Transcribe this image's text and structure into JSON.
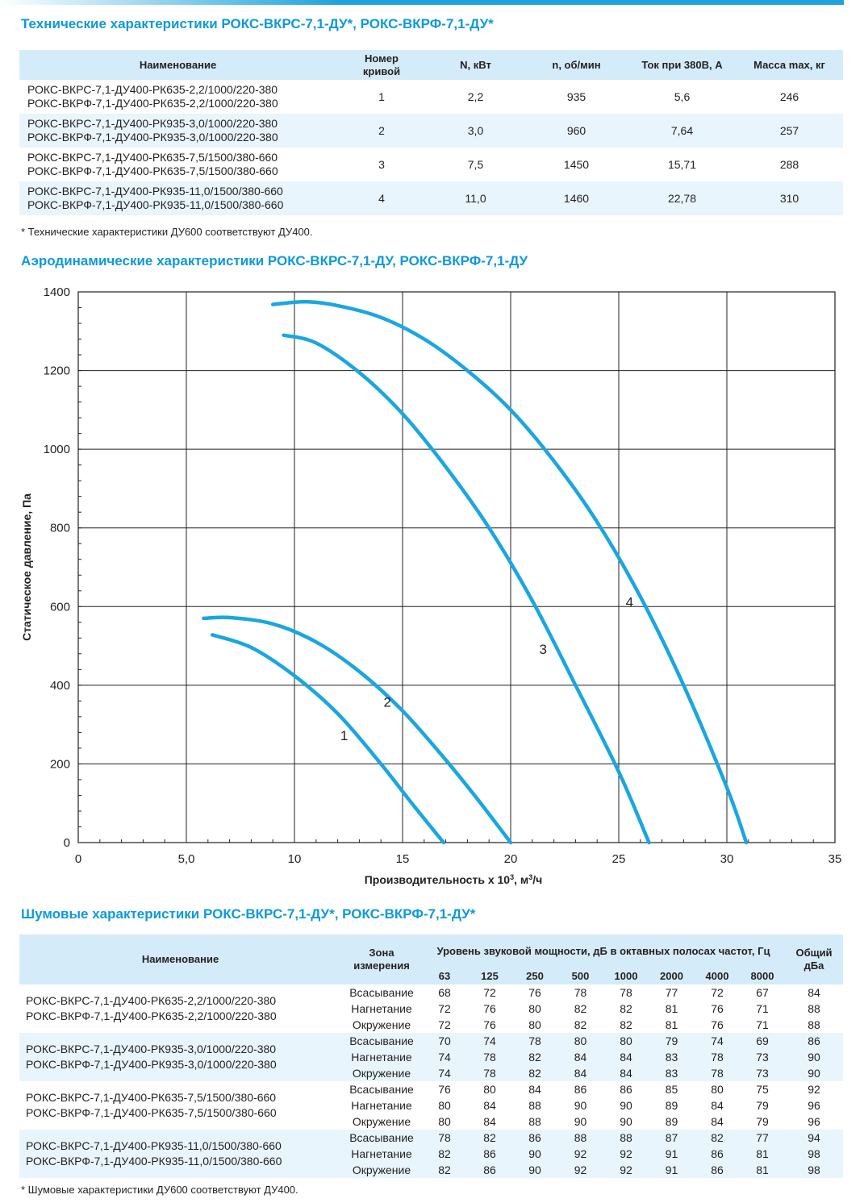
{
  "tech": {
    "title": "Технические характеристики РОКС-ВКРС-7,1-ДУ*, РОКС-ВКРФ-7,1-ДУ*",
    "headers": [
      "Наименование",
      "Номер кривой",
      "N, кВт",
      "n, об/мин",
      "Ток при 380В, А",
      "Масса max, кг"
    ],
    "rows": [
      {
        "name1": "РОКС-ВКРС-7,1-ДУ400-РК635-2,2/1000/220-380",
        "name2": "РОКС-ВКРФ-7,1-ДУ400-РК635-2,2/1000/220-380",
        "curve": "1",
        "power": "2,2",
        "rpm": "935",
        "current": "5,6",
        "mass": "246"
      },
      {
        "name1": "РОКС-ВКРС-7,1-ДУ400-РК935-3,0/1000/220-380",
        "name2": "РОКС-ВКРФ-7,1-ДУ400-РК935-3,0/1000/220-380",
        "curve": "2",
        "power": "3,0",
        "rpm": "960",
        "current": "7,64",
        "mass": "257"
      },
      {
        "name1": "РОКС-ВКРС-7,1-ДУ400-РК635-7,5/1500/380-660",
        "name2": "РОКС-ВКРФ-7,1-ДУ400-РК635-7,5/1500/380-660",
        "curve": "3",
        "power": "7,5",
        "rpm": "1450",
        "current": "15,71",
        "mass": "288"
      },
      {
        "name1": "РОКС-ВКРС-7,1-ДУ400-РК935-11,0/1500/380-660",
        "name2": "РОКС-ВКРФ-7,1-ДУ400-РК935-11,0/1500/380-660",
        "curve": "4",
        "power": "11,0",
        "rpm": "1460",
        "current": "22,78",
        "mass": "310"
      }
    ],
    "note": "* Технические характеристики ДУ600 соответствуют ДУ400."
  },
  "aero": {
    "title": "Аэродинамические характеристики РОКС-ВКРС-7,1-ДУ, РОКС-ВКРФ-7,1-ДУ"
  },
  "chart_data": {
    "type": "line",
    "xlabel_main": "Производительность х 10",
    "xlabel_sup": "3",
    "xlabel_unit": ", м",
    "xlabel_unit_sup": "3",
    "xlabel_tail": "/ч",
    "ylabel": "Статическое давление, Па",
    "xlim": [
      0,
      35
    ],
    "ylim": [
      0,
      1400
    ],
    "x_ticks": [
      0,
      5,
      10,
      15,
      20,
      25,
      30,
      35
    ],
    "x_tick_labels": [
      "0",
      "5,0",
      "10",
      "15",
      "20",
      "25",
      "30",
      "35"
    ],
    "y_ticks": [
      0,
      200,
      400,
      600,
      800,
      1000,
      1200,
      1400
    ],
    "y_tick_labels": [
      "0",
      "200",
      "400",
      "600",
      "800",
      "1000",
      "1200",
      "1400"
    ],
    "grid": true,
    "line_color": "#1aa6e0",
    "series": [
      {
        "name": "1",
        "label_at": [
          12.3,
          260
        ],
        "points": [
          [
            6.2,
            528
          ],
          [
            8,
            496
          ],
          [
            10,
            424
          ],
          [
            12,
            328
          ],
          [
            14,
            200
          ],
          [
            15.5,
            95
          ],
          [
            16.9,
            0
          ]
        ]
      },
      {
        "name": "2",
        "label_at": [
          14.3,
          345
        ],
        "points": [
          [
            5.8,
            570
          ],
          [
            7,
            572
          ],
          [
            9,
            556
          ],
          [
            11,
            510
          ],
          [
            13,
            435
          ],
          [
            15,
            335
          ],
          [
            17,
            210
          ],
          [
            18.5,
            108
          ],
          [
            20,
            0
          ]
        ]
      },
      {
        "name": "3",
        "label_at": [
          21.5,
          480
        ],
        "points": [
          [
            9.5,
            1290
          ],
          [
            11,
            1270
          ],
          [
            13,
            1195
          ],
          [
            15,
            1090
          ],
          [
            17,
            955
          ],
          [
            19,
            800
          ],
          [
            21,
            615
          ],
          [
            23,
            400
          ],
          [
            25,
            180
          ],
          [
            26.4,
            0
          ]
        ]
      },
      {
        "name": "4",
        "label_at": [
          25.5,
          600
        ],
        "points": [
          [
            9,
            1368
          ],
          [
            10.5,
            1375
          ],
          [
            12,
            1365
          ],
          [
            14,
            1335
          ],
          [
            16,
            1280
          ],
          [
            18,
            1200
          ],
          [
            20,
            1100
          ],
          [
            22,
            970
          ],
          [
            24,
            815
          ],
          [
            26,
            625
          ],
          [
            28,
            400
          ],
          [
            30,
            140
          ],
          [
            30.9,
            0
          ]
        ]
      }
    ]
  },
  "noise": {
    "title": "Шумовые характеристики РОКС-ВКРС-7,1-ДУ*, РОКС-ВКРФ-7,1-ДУ*",
    "h_name": "Наименование",
    "h_zone": "Зона измерения",
    "h_level": "Уровень звуковой мощности, дБ в октавных полосах частот, Гц",
    "h_total": "Общий дБа",
    "freqs": [
      "63",
      "125",
      "250",
      "500",
      "1000",
      "2000",
      "4000",
      "8000"
    ],
    "groups": [
      {
        "name1": "РОКС-ВКРС-7,1-ДУ400-РК635-2,2/1000/220-380",
        "name2": "РОКС-ВКРФ-7,1-ДУ400-РК635-2,2/1000/220-380",
        "rows": [
          {
            "zone": "Всасывание",
            "vals": [
              "68",
              "72",
              "76",
              "78",
              "78",
              "77",
              "72",
              "67"
            ],
            "total": "84"
          },
          {
            "zone": "Нагнетание",
            "vals": [
              "72",
              "76",
              "80",
              "82",
              "82",
              "81",
              "76",
              "71"
            ],
            "total": "88"
          },
          {
            "zone": "Окружение",
            "vals": [
              "72",
              "76",
              "80",
              "82",
              "82",
              "81",
              "76",
              "71"
            ],
            "total": "88"
          }
        ]
      },
      {
        "name1": "РОКС-ВКРС-7,1-ДУ400-РК935-3,0/1000/220-380",
        "name2": "РОКС-ВКРФ-7,1-ДУ400-РК935-3,0/1000/220-380",
        "rows": [
          {
            "zone": "Всасывание",
            "vals": [
              "70",
              "74",
              "78",
              "80",
              "80",
              "79",
              "74",
              "69"
            ],
            "total": "86"
          },
          {
            "zone": "Нагнетание",
            "vals": [
              "74",
              "78",
              "82",
              "84",
              "84",
              "83",
              "78",
              "73"
            ],
            "total": "90"
          },
          {
            "zone": "Окружение",
            "vals": [
              "74",
              "78",
              "82",
              "84",
              "84",
              "83",
              "78",
              "73"
            ],
            "total": "90"
          }
        ]
      },
      {
        "name1": "РОКС-ВКРС-7,1-ДУ400-РК635-7,5/1500/380-660",
        "name2": "РОКС-ВКРФ-7,1-ДУ400-РК635-7,5/1500/380-660",
        "rows": [
          {
            "zone": "Всасывание",
            "vals": [
              "76",
              "80",
              "84",
              "86",
              "86",
              "85",
              "80",
              "75"
            ],
            "total": "92"
          },
          {
            "zone": "Нагнетание",
            "vals": [
              "80",
              "84",
              "88",
              "90",
              "90",
              "89",
              "84",
              "79"
            ],
            "total": "96"
          },
          {
            "zone": "Окружение",
            "vals": [
              "80",
              "84",
              "88",
              "90",
              "90",
              "89",
              "84",
              "79"
            ],
            "total": "96"
          }
        ]
      },
      {
        "name1": "РОКС-ВКРС-7,1-ДУ400-РК935-11,0/1500/380-660",
        "name2": "РОКС-ВКРФ-7,1-ДУ400-РК935-11,0/1500/380-660",
        "rows": [
          {
            "zone": "Всасывание",
            "vals": [
              "78",
              "82",
              "86",
              "88",
              "88",
              "87",
              "82",
              "77"
            ],
            "total": "94"
          },
          {
            "zone": "Нагнетание",
            "vals": [
              "82",
              "86",
              "90",
              "92",
              "92",
              "91",
              "86",
              "81"
            ],
            "total": "98"
          },
          {
            "zone": "Окружение",
            "vals": [
              "82",
              "86",
              "90",
              "92",
              "92",
              "91",
              "86",
              "81"
            ],
            "total": "98"
          }
        ]
      }
    ],
    "note": "* Шумовые характеристики ДУ600 соответствуют ДУ400."
  }
}
